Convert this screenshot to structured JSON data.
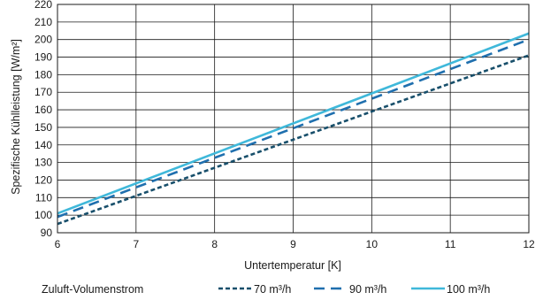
{
  "chart_data": {
    "type": "line",
    "title": "",
    "xlabel": "Untertemperatur [K]",
    "ylabel": "Spezifische Kühlleistung [W/m²]",
    "xlim": [
      6,
      12
    ],
    "ylim": [
      90,
      220
    ],
    "xticks": [
      6,
      7,
      8,
      9,
      10,
      11,
      12
    ],
    "yticks": [
      90,
      100,
      110,
      120,
      130,
      140,
      150,
      160,
      170,
      180,
      190,
      200,
      210,
      220
    ],
    "grid": true,
    "legend": {
      "title": "Zuluft-Volumenstrom",
      "position": "bottom"
    },
    "series": [
      {
        "name": "70 m³/h",
        "x": [
          6,
          12
        ],
        "y": [
          95,
          191
        ],
        "color": "#184f6b",
        "dash": "short"
      },
      {
        "name": "90 m³/h",
        "x": [
          6,
          12
        ],
        "y": [
          99,
          200
        ],
        "color": "#1f6fae",
        "dash": "long"
      },
      {
        "name": "100 m³/h",
        "x": [
          6,
          12
        ],
        "y": [
          101,
          203.5
        ],
        "color": "#3fb8da",
        "dash": "solid"
      }
    ]
  }
}
